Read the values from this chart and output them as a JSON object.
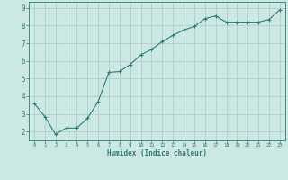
{
  "xlabel": "Humidex (Indice chaleur)",
  "ylabel": "",
  "x": [
    0,
    1,
    2,
    3,
    4,
    5,
    6,
    7,
    8,
    9,
    10,
    11,
    12,
    13,
    14,
    15,
    16,
    17,
    18,
    19,
    20,
    21,
    22,
    23
  ],
  "y": [
    3.6,
    2.85,
    1.85,
    2.2,
    2.2,
    2.75,
    3.7,
    5.35,
    5.4,
    5.8,
    6.35,
    6.65,
    7.1,
    7.45,
    7.75,
    7.95,
    8.4,
    8.55,
    8.2,
    8.2,
    8.2,
    8.2,
    8.35,
    8.9
  ],
  "line_color": "#2e7d6e",
  "marker": "+",
  "marker_size": 3,
  "bg_color": "#cce8e4",
  "grid_color": "#b0ceca",
  "tick_color": "#2e7d6e",
  "label_color": "#2e7d6e",
  "ylim": [
    1.5,
    9.35
  ],
  "xlim": [
    -0.5,
    23.5
  ],
  "yticks": [
    2,
    3,
    4,
    5,
    6,
    7,
    8,
    9
  ],
  "xticks": [
    0,
    1,
    2,
    3,
    4,
    5,
    6,
    7,
    8,
    9,
    10,
    11,
    12,
    13,
    14,
    15,
    16,
    17,
    18,
    19,
    20,
    21,
    22,
    23
  ]
}
